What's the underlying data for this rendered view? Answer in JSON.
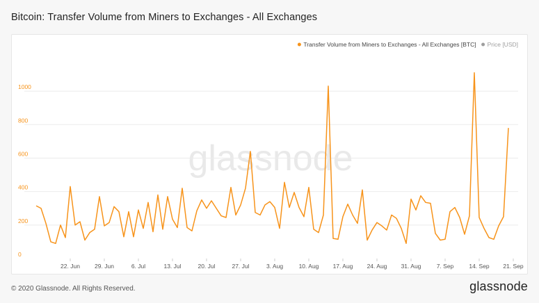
{
  "title": "Bitcoin: Transfer Volume from Miners to Exchanges - All Exchanges",
  "watermark": "glassnode",
  "footer": {
    "copyright": "© 2020 Glassnode. All Rights Reserved.",
    "logo": "glassnode"
  },
  "colors": {
    "series": "#f7931a",
    "axis_text": "#f7931a",
    "x_tick_text": "#555555",
    "grid": "#ebebeb",
    "watermark": "#e9e9e9",
    "legend_price": "#9e9e9e",
    "legend_text": "#444444"
  },
  "chart_data": {
    "type": "line",
    "title": "Bitcoin: Transfer Volume from Miners to Exchanges - All Exchanges",
    "legend_placement": "top-right",
    "legend": [
      {
        "name": "Transfer Volume from Miners to Exchanges - All Exchanges [BTC]",
        "color": "#f7931a",
        "marker": "circle"
      },
      {
        "name": "Price [USD]",
        "color": "#9e9e9e",
        "marker": "circle"
      }
    ],
    "grid": "horizontal",
    "ylim": [
      0,
      1150
    ],
    "yticks": [
      0,
      200,
      400,
      600,
      800,
      1000
    ],
    "x_start": "2020-06-14",
    "x_end": "2020-09-22",
    "xticks": [
      {
        "date": "2020-06-22",
        "label": "22. Jun"
      },
      {
        "date": "2020-06-29",
        "label": "29. Jun"
      },
      {
        "date": "2020-07-06",
        "label": "6. Jul"
      },
      {
        "date": "2020-07-13",
        "label": "13. Jul"
      },
      {
        "date": "2020-07-20",
        "label": "20. Jul"
      },
      {
        "date": "2020-07-27",
        "label": "27. Jul"
      },
      {
        "date": "2020-08-03",
        "label": "3. Aug"
      },
      {
        "date": "2020-08-10",
        "label": "10. Aug"
      },
      {
        "date": "2020-08-17",
        "label": "17. Aug"
      },
      {
        "date": "2020-08-24",
        "label": "24. Aug"
      },
      {
        "date": "2020-08-31",
        "label": "31. Aug"
      },
      {
        "date": "2020-09-07",
        "label": "7. Sep"
      },
      {
        "date": "2020-09-14",
        "label": "14. Sep"
      },
      {
        "date": "2020-09-21",
        "label": "21. Sep"
      }
    ],
    "series": [
      {
        "name": "Transfer Volume from Miners to Exchanges - All Exchanges [BTC]",
        "points": [
          [
            "2020-06-15",
            315
          ],
          [
            "2020-06-16",
            300
          ],
          [
            "2020-06-17",
            210
          ],
          [
            "2020-06-18",
            100
          ],
          [
            "2020-06-19",
            90
          ],
          [
            "2020-06-20",
            200
          ],
          [
            "2020-06-21",
            125
          ],
          [
            "2020-06-22",
            430
          ],
          [
            "2020-06-23",
            200
          ],
          [
            "2020-06-24",
            220
          ],
          [
            "2020-06-25",
            110
          ],
          [
            "2020-06-26",
            155
          ],
          [
            "2020-06-27",
            175
          ],
          [
            "2020-06-28",
            370
          ],
          [
            "2020-06-29",
            195
          ],
          [
            "2020-06-30",
            215
          ],
          [
            "2020-07-01",
            310
          ],
          [
            "2020-07-02",
            280
          ],
          [
            "2020-07-03",
            130
          ],
          [
            "2020-07-04",
            280
          ],
          [
            "2020-07-05",
            130
          ],
          [
            "2020-07-06",
            290
          ],
          [
            "2020-07-07",
            180
          ],
          [
            "2020-07-08",
            335
          ],
          [
            "2020-07-09",
            160
          ],
          [
            "2020-07-10",
            380
          ],
          [
            "2020-07-11",
            175
          ],
          [
            "2020-07-12",
            370
          ],
          [
            "2020-07-13",
            235
          ],
          [
            "2020-07-14",
            185
          ],
          [
            "2020-07-15",
            420
          ],
          [
            "2020-07-16",
            185
          ],
          [
            "2020-07-17",
            165
          ],
          [
            "2020-07-18",
            285
          ],
          [
            "2020-07-19",
            350
          ],
          [
            "2020-07-20",
            300
          ],
          [
            "2020-07-21",
            345
          ],
          [
            "2020-07-22",
            300
          ],
          [
            "2020-07-23",
            255
          ],
          [
            "2020-07-24",
            245
          ],
          [
            "2020-07-25",
            425
          ],
          [
            "2020-07-26",
            260
          ],
          [
            "2020-07-27",
            320
          ],
          [
            "2020-07-28",
            420
          ],
          [
            "2020-07-29",
            640
          ],
          [
            "2020-07-30",
            275
          ],
          [
            "2020-07-31",
            260
          ],
          [
            "2020-08-01",
            320
          ],
          [
            "2020-08-02",
            340
          ],
          [
            "2020-08-03",
            305
          ],
          [
            "2020-08-04",
            180
          ],
          [
            "2020-08-05",
            455
          ],
          [
            "2020-08-06",
            305
          ],
          [
            "2020-08-07",
            395
          ],
          [
            "2020-08-08",
            305
          ],
          [
            "2020-08-09",
            250
          ],
          [
            "2020-08-10",
            425
          ],
          [
            "2020-08-11",
            175
          ],
          [
            "2020-08-12",
            155
          ],
          [
            "2020-08-13",
            260
          ],
          [
            "2020-08-14",
            1030
          ],
          [
            "2020-08-15",
            120
          ],
          [
            "2020-08-16",
            115
          ],
          [
            "2020-08-17",
            250
          ],
          [
            "2020-08-18",
            325
          ],
          [
            "2020-08-19",
            260
          ],
          [
            "2020-08-20",
            210
          ],
          [
            "2020-08-21",
            410
          ],
          [
            "2020-08-22",
            110
          ],
          [
            "2020-08-23",
            170
          ],
          [
            "2020-08-24",
            215
          ],
          [
            "2020-08-25",
            195
          ],
          [
            "2020-08-26",
            170
          ],
          [
            "2020-08-27",
            260
          ],
          [
            "2020-08-28",
            240
          ],
          [
            "2020-08-29",
            180
          ],
          [
            "2020-08-30",
            90
          ],
          [
            "2020-08-31",
            355
          ],
          [
            "2020-09-01",
            290
          ],
          [
            "2020-09-02",
            375
          ],
          [
            "2020-09-03",
            335
          ],
          [
            "2020-09-04",
            330
          ],
          [
            "2020-09-05",
            150
          ],
          [
            "2020-09-06",
            110
          ],
          [
            "2020-09-07",
            115
          ],
          [
            "2020-09-08",
            280
          ],
          [
            "2020-09-09",
            305
          ],
          [
            "2020-09-10",
            245
          ],
          [
            "2020-09-11",
            145
          ],
          [
            "2020-09-12",
            255
          ],
          [
            "2020-09-13",
            1110
          ],
          [
            "2020-09-14",
            245
          ],
          [
            "2020-09-15",
            180
          ],
          [
            "2020-09-16",
            125
          ],
          [
            "2020-09-17",
            115
          ],
          [
            "2020-09-18",
            195
          ],
          [
            "2020-09-19",
            250
          ],
          [
            "2020-09-20",
            780
          ]
        ]
      }
    ]
  }
}
